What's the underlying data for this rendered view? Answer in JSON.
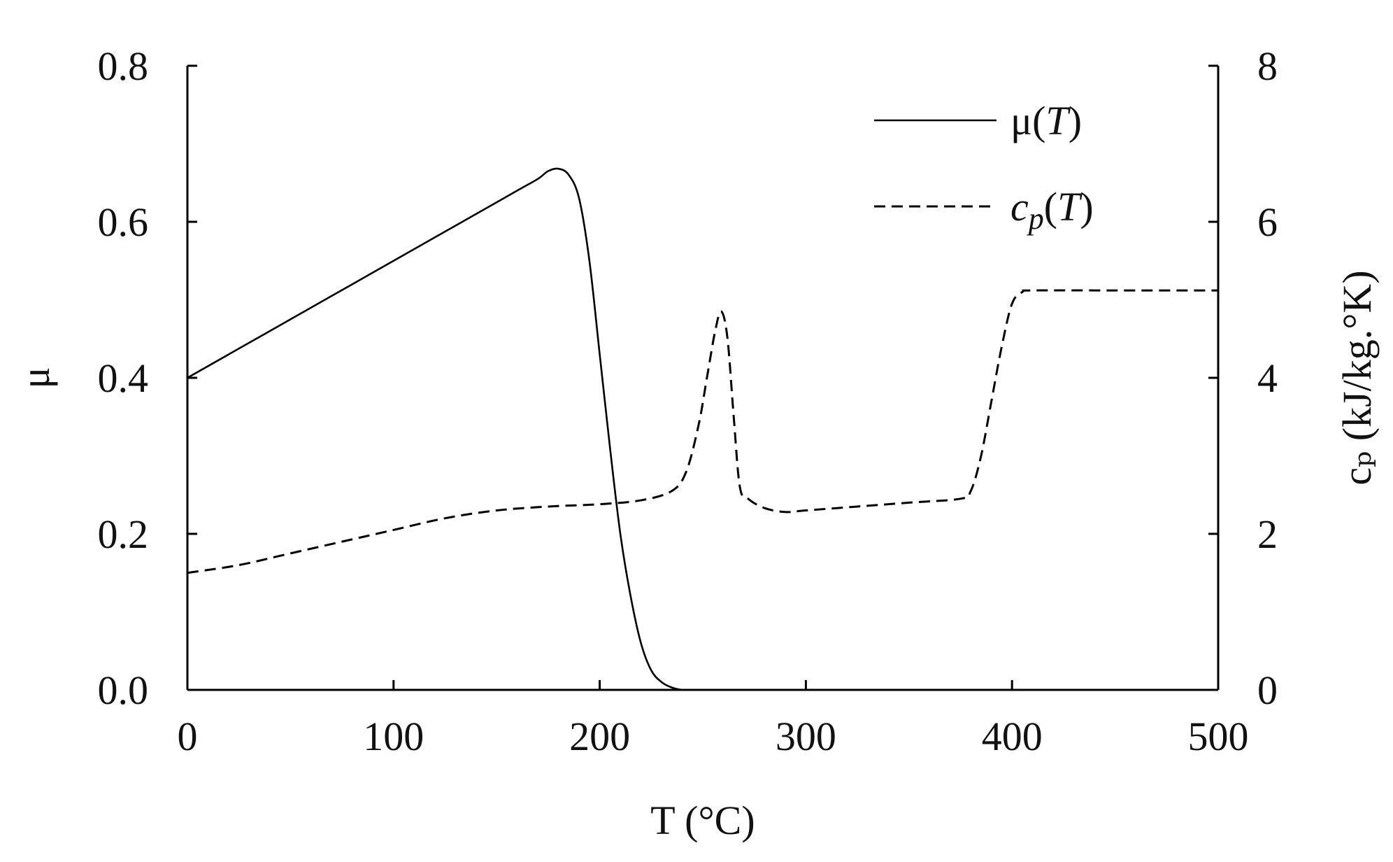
{
  "chart_data": {
    "type": "line",
    "xlabel": "T (°C)",
    "ylabel_left": "μ",
    "ylabel_right": "cₚ (kJ/kg.°K)",
    "xlim": [
      0,
      500
    ],
    "ylim_left": [
      0,
      0.8
    ],
    "ylim_right": [
      0,
      8
    ],
    "x_ticks": [
      "0",
      "100",
      "200",
      "300",
      "400",
      "500"
    ],
    "y_left_ticks": [
      "0.0",
      "0.2",
      "0.4",
      "0.6",
      "0.8"
    ],
    "y_right_ticks": [
      "0",
      "2",
      "4",
      "6",
      "8"
    ],
    "grid": false,
    "legend_placement": "top-right",
    "series": [
      {
        "name": "μ(T)",
        "legend_main": "μ(",
        "legend_var": "T",
        "legend_tail": ")",
        "axis": "left",
        "style": "solid",
        "x": [
          0,
          20,
          40,
          60,
          80,
          100,
          120,
          140,
          160,
          170,
          175,
          180,
          185,
          190,
          195,
          200,
          205,
          210,
          215,
          220,
          225,
          230,
          235,
          240,
          245
        ],
        "y": [
          0.4,
          0.43,
          0.46,
          0.49,
          0.52,
          0.55,
          0.58,
          0.61,
          0.64,
          0.655,
          0.665,
          0.668,
          0.66,
          0.63,
          0.55,
          0.43,
          0.31,
          0.2,
          0.12,
          0.06,
          0.025,
          0.01,
          0.003,
          0.0,
          0.0
        ]
      },
      {
        "name": "cp(T)",
        "legend_main": "c",
        "legend_sub": "p",
        "legend_var": "T",
        "axis": "right",
        "style": "dashed",
        "x": [
          0,
          25,
          50,
          75,
          100,
          125,
          150,
          175,
          200,
          220,
          235,
          242,
          248,
          252,
          256,
          259,
          262,
          265,
          268,
          272,
          280,
          290,
          300,
          325,
          350,
          375,
          380,
          385,
          390,
          395,
          400,
          405,
          410,
          450,
          500
        ],
        "y": [
          1.5,
          1.6,
          1.75,
          1.9,
          2.05,
          2.2,
          2.3,
          2.35,
          2.38,
          2.43,
          2.55,
          2.8,
          3.4,
          4.0,
          4.6,
          4.85,
          4.5,
          3.5,
          2.6,
          2.45,
          2.33,
          2.28,
          2.3,
          2.35,
          2.4,
          2.45,
          2.55,
          3.0,
          3.7,
          4.4,
          4.95,
          5.1,
          5.12,
          5.12,
          5.12
        ]
      }
    ]
  }
}
